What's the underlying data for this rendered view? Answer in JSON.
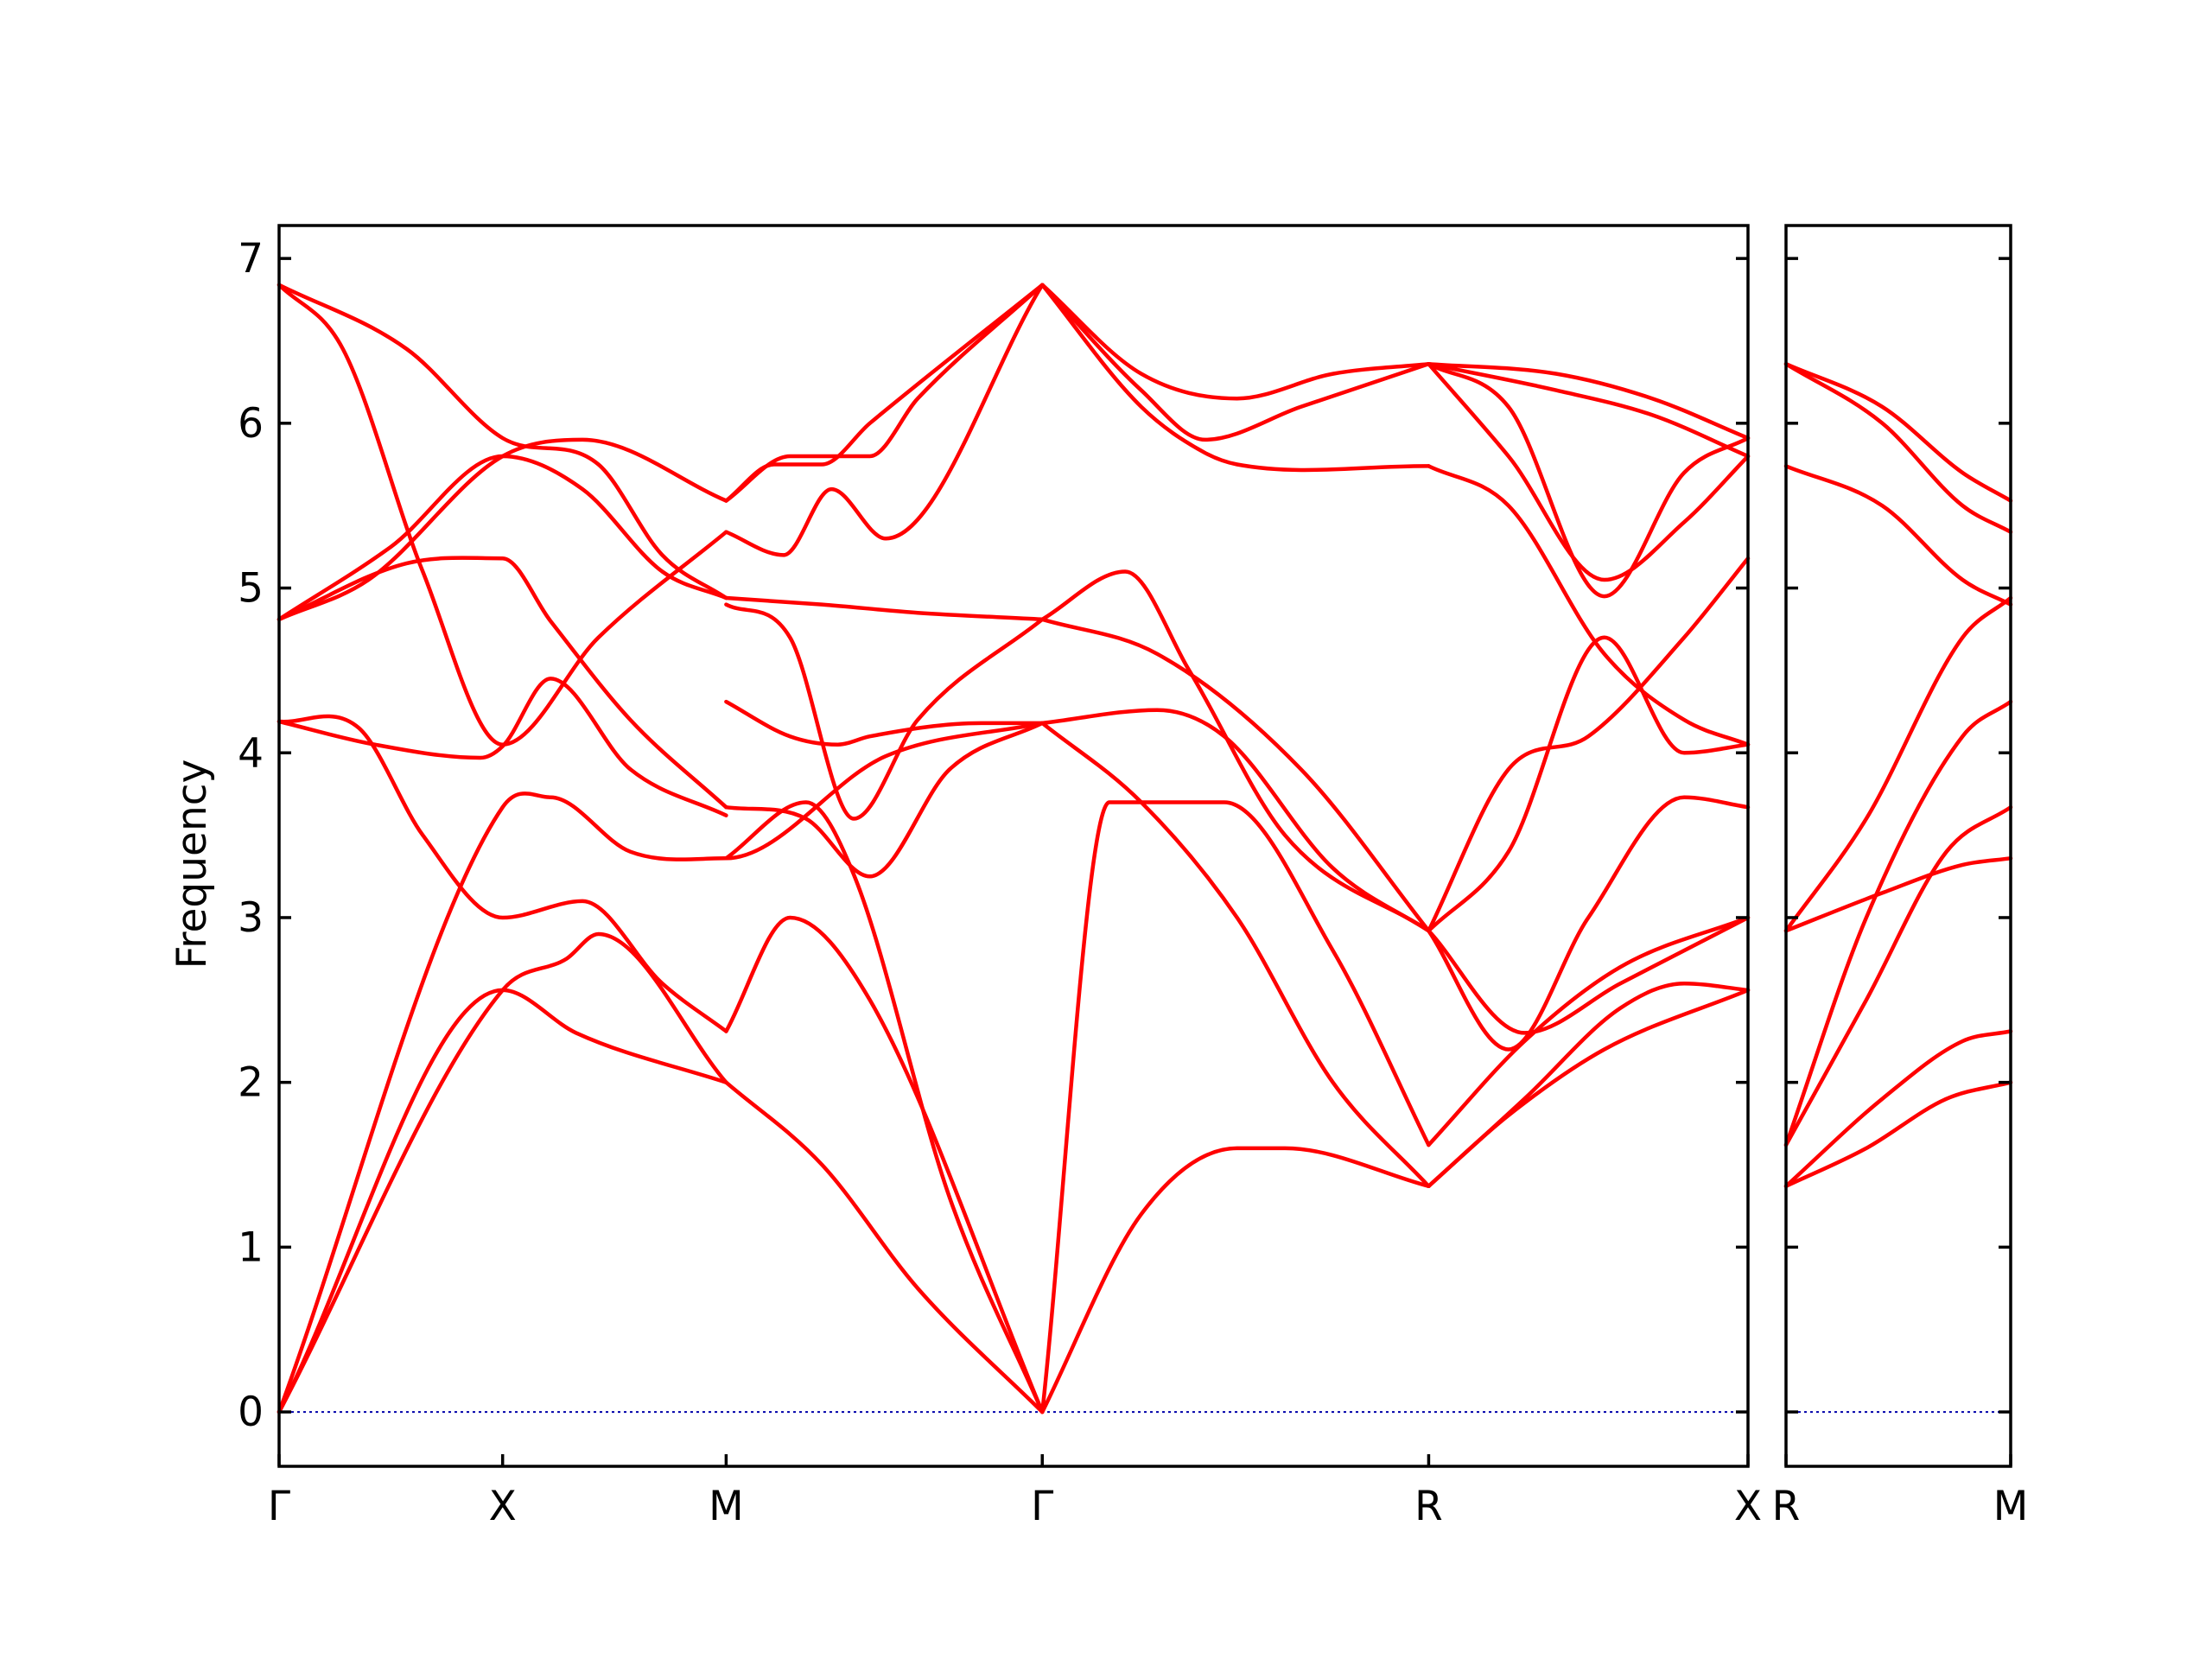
{
  "chart_data": {
    "type": "line",
    "title": "",
    "ylabel": "Frequency",
    "xlabel": "",
    "ylim": [
      -0.33,
      7.2
    ],
    "yticks": [
      0,
      1,
      2,
      3,
      4,
      5,
      6,
      7
    ],
    "grid": false,
    "legend": "none",
    "colors": {
      "band": "#ff0000",
      "zero": "#0000aa",
      "frame": "#000000"
    },
    "panels": [
      {
        "name": "panel-main",
        "xlim": [
          0,
          4.6
        ],
        "high_symmetry_points": [
          {
            "label": "Γ",
            "x": 0
          },
          {
            "label": "X",
            "x": 0.7
          },
          {
            "label": "M",
            "x": 1.4
          },
          {
            "label": "Γ",
            "x": 2.39
          },
          {
            "label": "R",
            "x": 3.6
          },
          {
            "label": "X",
            "x": 4.6
          }
        ],
        "series": [
          {
            "x": [
              0,
              0.7,
              0.93,
              1.4
            ],
            "y": [
              0,
              2.56,
              2.3,
              2.0
            ]
          },
          {
            "x": [
              0,
              0.7,
              0.9,
              1.0,
              1.4
            ],
            "y": [
              0,
              2.56,
              2.75,
              2.9,
              2.0
            ]
          },
          {
            "x": [
              0,
              0.7,
              0.85,
              1.1,
              1.4,
              1.9,
              2.39
            ],
            "y": [
              0,
              3.67,
              3.73,
              3.4,
              3.36,
              3.98,
              4.18
            ]
          },
          {
            "x": [
              0,
              0.25,
              0.45,
              0.7,
              0.95,
              1.2,
              1.4
            ],
            "y": [
              4.19,
              4.15,
              3.5,
              3.0,
              3.1,
              2.6,
              2.31
            ]
          },
          {
            "x": [
              0,
              0.3,
              0.63,
              0.7,
              0.85,
              1.1,
              1.4
            ],
            "y": [
              4.19,
              4.05,
              3.97,
              4.04,
              4.45,
              3.9,
              3.62
            ]
          },
          {
            "x": [
              0,
              0.4,
              0.7,
              0.85,
              1.1,
              1.4
            ],
            "y": [
              4.81,
              5.15,
              5.18,
              4.8,
              4.2,
              3.67
            ]
          },
          {
            "x": [
              0,
              0.28,
              0.7,
              0.95,
              1.4
            ],
            "y": [
              4.81,
              5.05,
              5.8,
              5.9,
              5.53
            ]
          },
          {
            "x": [
              0,
              0.35,
              0.7,
              0.95,
              1.2,
              1.4
            ],
            "y": [
              4.81,
              5.25,
              5.8,
              5.6,
              5.1,
              4.94
            ]
          },
          {
            "x": [
              0,
              0.2,
              0.45,
              0.7,
              1.0,
              1.4
            ],
            "y": [
              6.84,
              6.45,
              5.1,
              4.05,
              4.7,
              5.34
            ]
          },
          {
            "x": [
              0,
              0.4,
              0.7,
              1.0,
              1.2,
              1.4
            ],
            "y": [
              6.84,
              6.45,
              5.91,
              5.75,
              5.2,
              4.94
            ]
          },
          {
            "x": [
              1.4,
              1.7,
              2.0,
              2.39
            ],
            "y": [
              2.0,
              1.5,
              0.75,
              0.0
            ]
          },
          {
            "x": [
              1.4,
              1.6,
              1.85,
              2.39
            ],
            "y": [
              2.31,
              3.0,
              2.5,
              0.0
            ]
          },
          {
            "x": [
              1.4,
              1.65,
              1.8,
              2.1,
              2.39
            ],
            "y": [
              3.36,
              3.7,
              3.26,
              1.3,
              0.0
            ]
          },
          {
            "x": [
              1.4,
              1.65,
              1.85,
              2.1,
              2.39
            ],
            "y": [
              3.67,
              3.6,
              3.25,
              3.9,
              4.18
            ]
          },
          {
            "x": [
              1.4,
              1.6,
              1.75,
              1.85,
              2.2,
              2.39
            ],
            "y": [
              4.31,
              4.1,
              4.05,
              4.1,
              4.18,
              4.18
            ]
          },
          {
            "x": [
              1.4,
              1.6,
              1.8,
              2.0,
              2.39
            ],
            "y": [
              4.9,
              4.7,
              3.6,
              4.2,
              4.81
            ]
          },
          {
            "x": [
              1.4,
              1.7,
              2.0,
              2.39
            ],
            "y": [
              4.94,
              4.9,
              4.85,
              4.81
            ]
          },
          {
            "x": [
              1.4,
              1.58,
              1.73,
              1.9,
              2.39
            ],
            "y": [
              5.34,
              5.2,
              5.6,
              5.3,
              6.84
            ]
          },
          {
            "x": [
              1.4,
              1.55,
              1.7,
              1.85,
              2.39
            ],
            "y": [
              5.53,
              5.75,
              5.75,
              6.0,
              6.84
            ]
          },
          {
            "x": [
              1.4,
              1.6,
              1.85,
              2.0,
              2.39
            ],
            "y": [
              5.53,
              5.8,
              5.8,
              6.15,
              6.84
            ]
          },
          {
            "x": [
              2.39,
              2.7,
              3.0,
              3.15,
              3.6
            ],
            "y": [
              0,
              1.2,
              1.6,
              1.6,
              1.37
            ]
          },
          {
            "x": [
              2.39,
              2.6,
              2.96,
              3.3,
              3.6
            ],
            "y": [
              0,
              3.7,
              3.7,
              2.8,
              1.62
            ]
          },
          {
            "x": [
              2.39,
              2.7,
              3.0,
              3.3,
              3.6
            ],
            "y": [
              4.18,
              3.7,
              3.0,
              2.0,
              1.37
            ]
          },
          {
            "x": [
              2.39,
              2.75,
              2.96,
              3.3,
              3.6
            ],
            "y": [
              4.18,
              4.26,
              4.1,
              3.3,
              2.92
            ]
          },
          {
            "x": [
              2.39,
              2.75,
              3.2,
              3.6
            ],
            "y": [
              4.81,
              4.6,
              3.9,
              2.92
            ]
          },
          {
            "x": [
              2.39,
              2.65,
              2.85,
              3.15,
              3.6
            ],
            "y": [
              4.81,
              5.1,
              4.5,
              3.5,
              2.92
            ]
          },
          {
            "x": [
              2.39,
              2.7,
              2.9,
              3.0,
              3.6
            ],
            "y": [
              6.84,
              6.1,
              5.82,
              5.75,
              5.74
            ]
          },
          {
            "x": [
              2.39,
              2.7,
              2.9,
              3.2,
              3.6
            ],
            "y": [
              6.84,
              6.2,
              5.9,
              6.1,
              6.36
            ]
          },
          {
            "x": [
              2.39,
              2.7,
              3.0,
              3.3,
              3.6
            ],
            "y": [
              6.84,
              6.3,
              6.15,
              6.3,
              6.36
            ]
          },
          {
            "x": [
              3.6,
              3.9,
              4.2,
              4.4,
              4.6
            ],
            "y": [
              1.37,
              1.9,
              2.45,
              2.6,
              2.56
            ]
          },
          {
            "x": [
              3.6,
              3.85,
              4.15,
              4.6
            ],
            "y": [
              1.37,
              1.8,
              2.2,
              2.56
            ]
          },
          {
            "x": [
              3.6,
              3.9,
              4.2,
              4.6
            ],
            "y": [
              1.62,
              2.25,
              2.7,
              3.0
            ]
          },
          {
            "x": [
              3.6,
              3.9,
              4.2,
              4.6
            ],
            "y": [
              2.92,
              2.3,
              2.6,
              3.0
            ]
          },
          {
            "x": [
              3.6,
              3.85,
              4.1,
              4.4,
              4.6
            ],
            "y": [
              2.92,
              2.2,
              3.0,
              3.73,
              3.67
            ]
          },
          {
            "x": [
              3.6,
              3.85,
              4.15,
              4.4,
              4.6
            ],
            "y": [
              2.92,
              3.4,
              4.7,
              4.0,
              4.05
            ]
          },
          {
            "x": [
              3.6,
              3.85,
              4.1,
              4.4,
              4.6
            ],
            "y": [
              2.92,
              3.9,
              4.1,
              4.7,
              5.18
            ]
          },
          {
            "x": [
              3.6,
              3.85,
              4.15,
              4.4,
              4.6
            ],
            "y": [
              5.74,
              5.5,
              4.6,
              4.2,
              4.05
            ]
          },
          {
            "x": [
              3.6,
              3.85,
              4.15,
              4.4,
              4.6
            ],
            "y": [
              6.36,
              5.8,
              5.05,
              5.4,
              5.8
            ]
          },
          {
            "x": [
              3.6,
              3.85,
              4.15,
              4.4,
              4.6
            ],
            "y": [
              6.36,
              6.1,
              4.95,
              5.7,
              5.91
            ]
          },
          {
            "x": [
              3.6,
              4.0,
              4.3,
              4.6
            ],
            "y": [
              6.36,
              6.2,
              6.05,
              5.8
            ]
          },
          {
            "x": [
              3.6,
              4.0,
              4.3,
              4.6
            ],
            "y": [
              6.36,
              6.3,
              6.15,
              5.91
            ]
          }
        ]
      },
      {
        "name": "panel-side",
        "xlim": [
          0,
          0.7
        ],
        "high_symmetry_points": [
          {
            "label": "R",
            "x": 0
          },
          {
            "label": "M",
            "x": 0.7
          }
        ],
        "series": [
          {
            "x": [
              0,
              0.25,
              0.5,
              0.7
            ],
            "y": [
              1.37,
              1.6,
              1.9,
              2.0
            ]
          },
          {
            "x": [
              0,
              0.3,
              0.55,
              0.7
            ],
            "y": [
              1.37,
              1.9,
              2.25,
              2.31
            ]
          },
          {
            "x": [
              0,
              0.25,
              0.5,
              0.7
            ],
            "y": [
              1.62,
              2.5,
              3.4,
              3.67
            ]
          },
          {
            "x": [
              0,
              0.3,
              0.55,
              0.7
            ],
            "y": [
              2.92,
              3.15,
              3.32,
              3.36
            ]
          },
          {
            "x": [
              0,
              0.25,
              0.55,
              0.7
            ],
            "y": [
              1.62,
              3.0,
              4.1,
              4.31
            ]
          },
          {
            "x": [
              0,
              0.25,
              0.55,
              0.7
            ],
            "y": [
              2.92,
              3.6,
              4.7,
              4.94
            ]
          },
          {
            "x": [
              0,
              0.3,
              0.55,
              0.7
            ],
            "y": [
              5.74,
              5.5,
              5.05,
              4.9
            ]
          },
          {
            "x": [
              0,
              0.3,
              0.55,
              0.7
            ],
            "y": [
              6.36,
              6.0,
              5.5,
              5.34
            ]
          },
          {
            "x": [
              0,
              0.3,
              0.55,
              0.7
            ],
            "y": [
              6.36,
              6.1,
              5.7,
              5.53
            ]
          }
        ]
      }
    ]
  }
}
